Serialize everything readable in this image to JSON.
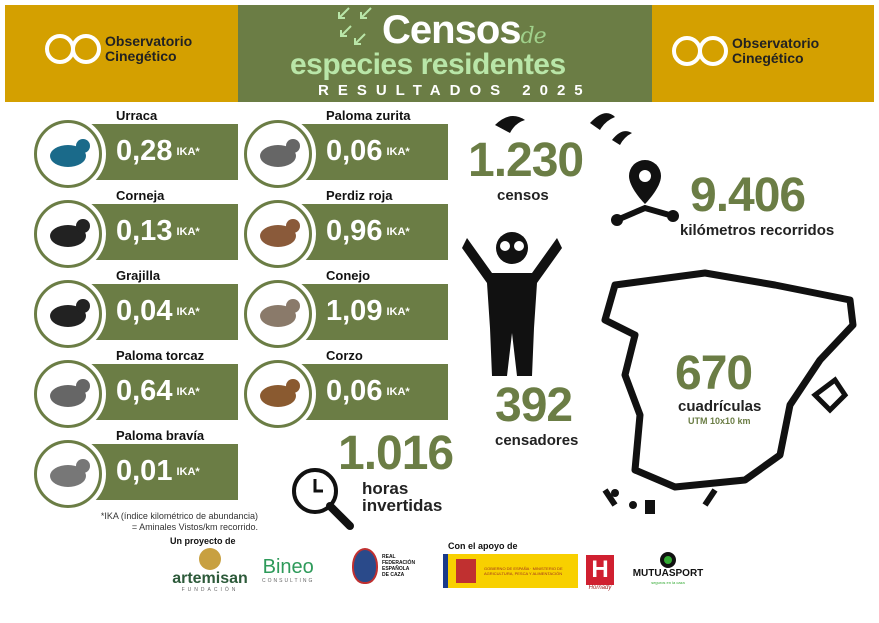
{
  "header": {
    "logo_text_1": "Observatorio",
    "logo_text_2": "Cinegético",
    "title_1": "Censos",
    "title_de": "de",
    "title_2": "especies residentes",
    "title_3": "RESULTADOS 2025"
  },
  "colors": {
    "gold": "#d4a000",
    "green": "#6b7d45",
    "light_green": "#b9e6a8"
  },
  "species": [
    {
      "name": "Urraca",
      "value": "0,28",
      "unit": "IKA*"
    },
    {
      "name": "Corneja",
      "value": "0,13",
      "unit": "IKA*"
    },
    {
      "name": "Grajilla",
      "value": "0,04",
      "unit": "IKA*"
    },
    {
      "name": "Paloma torcaz",
      "value": "0,64",
      "unit": "IKA*"
    },
    {
      "name": "Paloma bravía",
      "value": "0,01",
      "unit": "IKA*"
    },
    {
      "name": "Paloma zurita",
      "value": "0,06",
      "unit": "IKA*"
    },
    {
      "name": "Perdiz roja",
      "value": "0,96",
      "unit": "IKA*"
    },
    {
      "name": "Conejo",
      "value": "1,09",
      "unit": "IKA*"
    },
    {
      "name": "Corzo",
      "value": "0,06",
      "unit": "IKA*"
    }
  ],
  "stats": {
    "censos": {
      "value": "1.230",
      "label": "censos"
    },
    "km": {
      "value": "9.406",
      "label": "kilómetros recorridos"
    },
    "censadores": {
      "value": "392",
      "label": "censadores"
    },
    "cuadriculas": {
      "value": "670",
      "label": "cuadrículas",
      "sub": "UTM 10x10 km"
    },
    "horas": {
      "value": "1.016",
      "label_1": "horas",
      "label_2": "invertidas"
    }
  },
  "footnote": {
    "line_1": "*IKA (índice kilométrico de abundancia)",
    "line_2": "= Aminales Vistos/km recorrido."
  },
  "footer": {
    "project_label": "Un proyecto de",
    "support_label": "Con el apoyo de",
    "logos": [
      "artemisan",
      "Bineo",
      "REAL FEDERACIÓN ESPAÑOLA DE CAZA",
      "GOBIERNO DE ESPAÑA · MINISTERIO DE AGRICULTURA, PESCA Y ALIMENTACIÓN",
      "Hornady",
      "MUTUASPORT"
    ],
    "artemisan_sub": "FUNDACIÓN",
    "bineo_sub": "CONSULTING",
    "mutua_sub": "seguros en la caza"
  }
}
